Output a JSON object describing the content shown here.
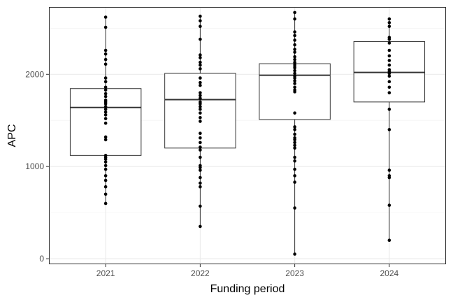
{
  "chart_data": {
    "type": "box",
    "xlabel": "Funding period",
    "ylabel": "APC",
    "ylim": [
      -60,
      2730
    ],
    "yticks": [
      0,
      1000,
      2000
    ],
    "grid": true,
    "categories": [
      "2021",
      "2022",
      "2023",
      "2024"
    ],
    "boxes": [
      {
        "category": "2021",
        "q1": 1120,
        "median": 1640,
        "q3": 1845,
        "whisker_low": 600,
        "whisker_high": 2620
      },
      {
        "category": "2022",
        "q1": 1200,
        "median": 1725,
        "q3": 2010,
        "whisker_low": 350,
        "whisker_high": 2630
      },
      {
        "category": "2023",
        "q1": 1510,
        "median": 1990,
        "q3": 2115,
        "whisker_low": 50,
        "whisker_high": 2670
      },
      {
        "category": "2024",
        "q1": 1700,
        "median": 2020,
        "q3": 2355,
        "whisker_low": 200,
        "whisker_high": 2600
      }
    ],
    "points": [
      {
        "category": "2021",
        "values": [
          2620,
          2510,
          2260,
          2220,
          2160,
          2110,
          1960,
          1920,
          1860,
          1830,
          1790,
          1760,
          1720,
          1700,
          1680,
          1650,
          1620,
          1590,
          1560,
          1520,
          1470,
          1320,
          1290,
          1120,
          1100,
          1080,
          1050,
          1010,
          970,
          900,
          850,
          780,
          700,
          600
        ]
      },
      {
        "category": "2022",
        "values": [
          2630,
          2580,
          2520,
          2380,
          2210,
          2180,
          2130,
          2100,
          2060,
          1960,
          1910,
          1880,
          1800,
          1770,
          1740,
          1700,
          1680,
          1650,
          1620,
          1580,
          1530,
          1490,
          1360,
          1310,
          1260,
          1210,
          1180,
          1100,
          1010,
          990,
          960,
          880,
          820,
          780,
          570,
          350
        ]
      },
      {
        "category": "2023",
        "values": [
          2670,
          2600,
          2460,
          2420,
          2370,
          2320,
          2270,
          2240,
          2190,
          2160,
          2130,
          2110,
          2090,
          2070,
          2040,
          2010,
          1980,
          1960,
          1930,
          1900,
          1860,
          1830,
          1810,
          1580,
          1430,
          1400,
          1350,
          1310,
          1290,
          1260,
          1230,
          1200,
          1100,
          1060,
          970,
          900,
          830,
          550,
          50
        ]
      },
      {
        "category": "2024",
        "values": [
          2600,
          2560,
          2520,
          2400,
          2380,
          2340,
          2260,
          2200,
          2150,
          2100,
          2050,
          2030,
          2010,
          1980,
          1920,
          1860,
          1800,
          1620,
          1400,
          960,
          900,
          880,
          580,
          200
        ]
      }
    ]
  }
}
